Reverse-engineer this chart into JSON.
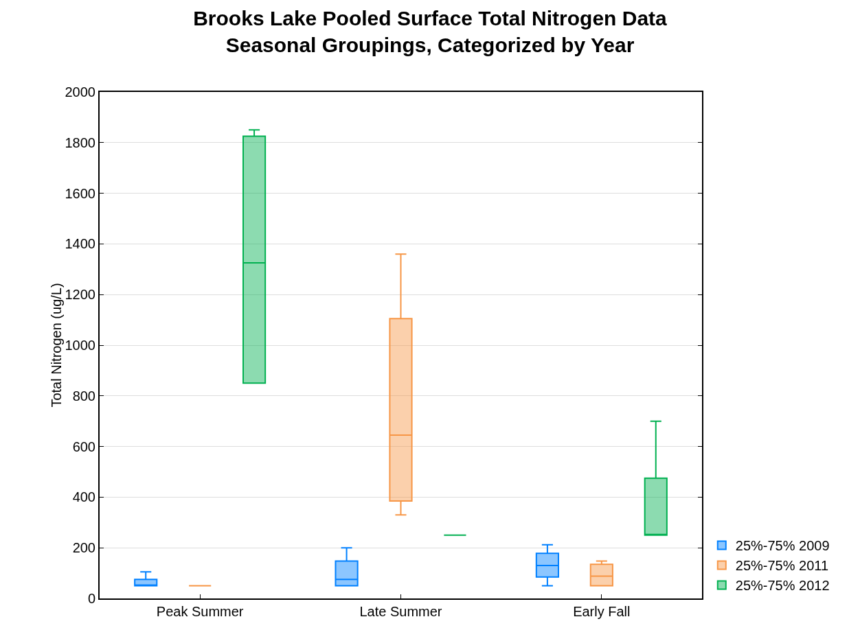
{
  "chart_data": {
    "type": "box",
    "title": "Brooks Lake Pooled Surface Total Nitrogen Data",
    "subtitle": "Seasonal Groupings, Categorized by Year",
    "ylabel": "Total Nitrogen (ug/L)",
    "categories": [
      "Peak Summer",
      "Late Summer",
      "Early Fall"
    ],
    "ylim": [
      0,
      2000
    ],
    "yticks": [
      0,
      200,
      400,
      600,
      800,
      1000,
      1200,
      1400,
      1600,
      1800,
      2000
    ],
    "grid": "y",
    "legend": "bottom right",
    "series": [
      {
        "name": "25%-75% 2009",
        "color": "#0080ff",
        "boxes": [
          {
            "low": 50,
            "q1": 50,
            "median": 50,
            "q3": 75,
            "high": 105
          },
          {
            "low": 50,
            "q1": 50,
            "median": 75,
            "q3": 148,
            "high": 200
          },
          {
            "low": 50,
            "q1": 85,
            "median": 130,
            "q3": 178,
            "high": 212
          }
        ]
      },
      {
        "name": "25%-75% 2011",
        "color": "#f79646",
        "boxes": [
          {
            "low": 50,
            "q1": 50,
            "median": 50,
            "q3": 50,
            "high": 50
          },
          {
            "low": 330,
            "q1": 385,
            "median": 645,
            "q3": 1105,
            "high": 1360
          },
          {
            "low": 50,
            "q1": 50,
            "median": 88,
            "q3": 135,
            "high": 148
          }
        ]
      },
      {
        "name": "25%-75% 2012",
        "color": "#00b050",
        "boxes": [
          {
            "low": 850,
            "q1": 850,
            "median": 1325,
            "q3": 1825,
            "high": 1850
          },
          {
            "low": 250,
            "q1": 250,
            "median": 250,
            "q3": 250,
            "high": 250
          },
          {
            "low": 250,
            "q1": 250,
            "median": 250,
            "q3": 475,
            "high": 700
          }
        ]
      }
    ]
  }
}
